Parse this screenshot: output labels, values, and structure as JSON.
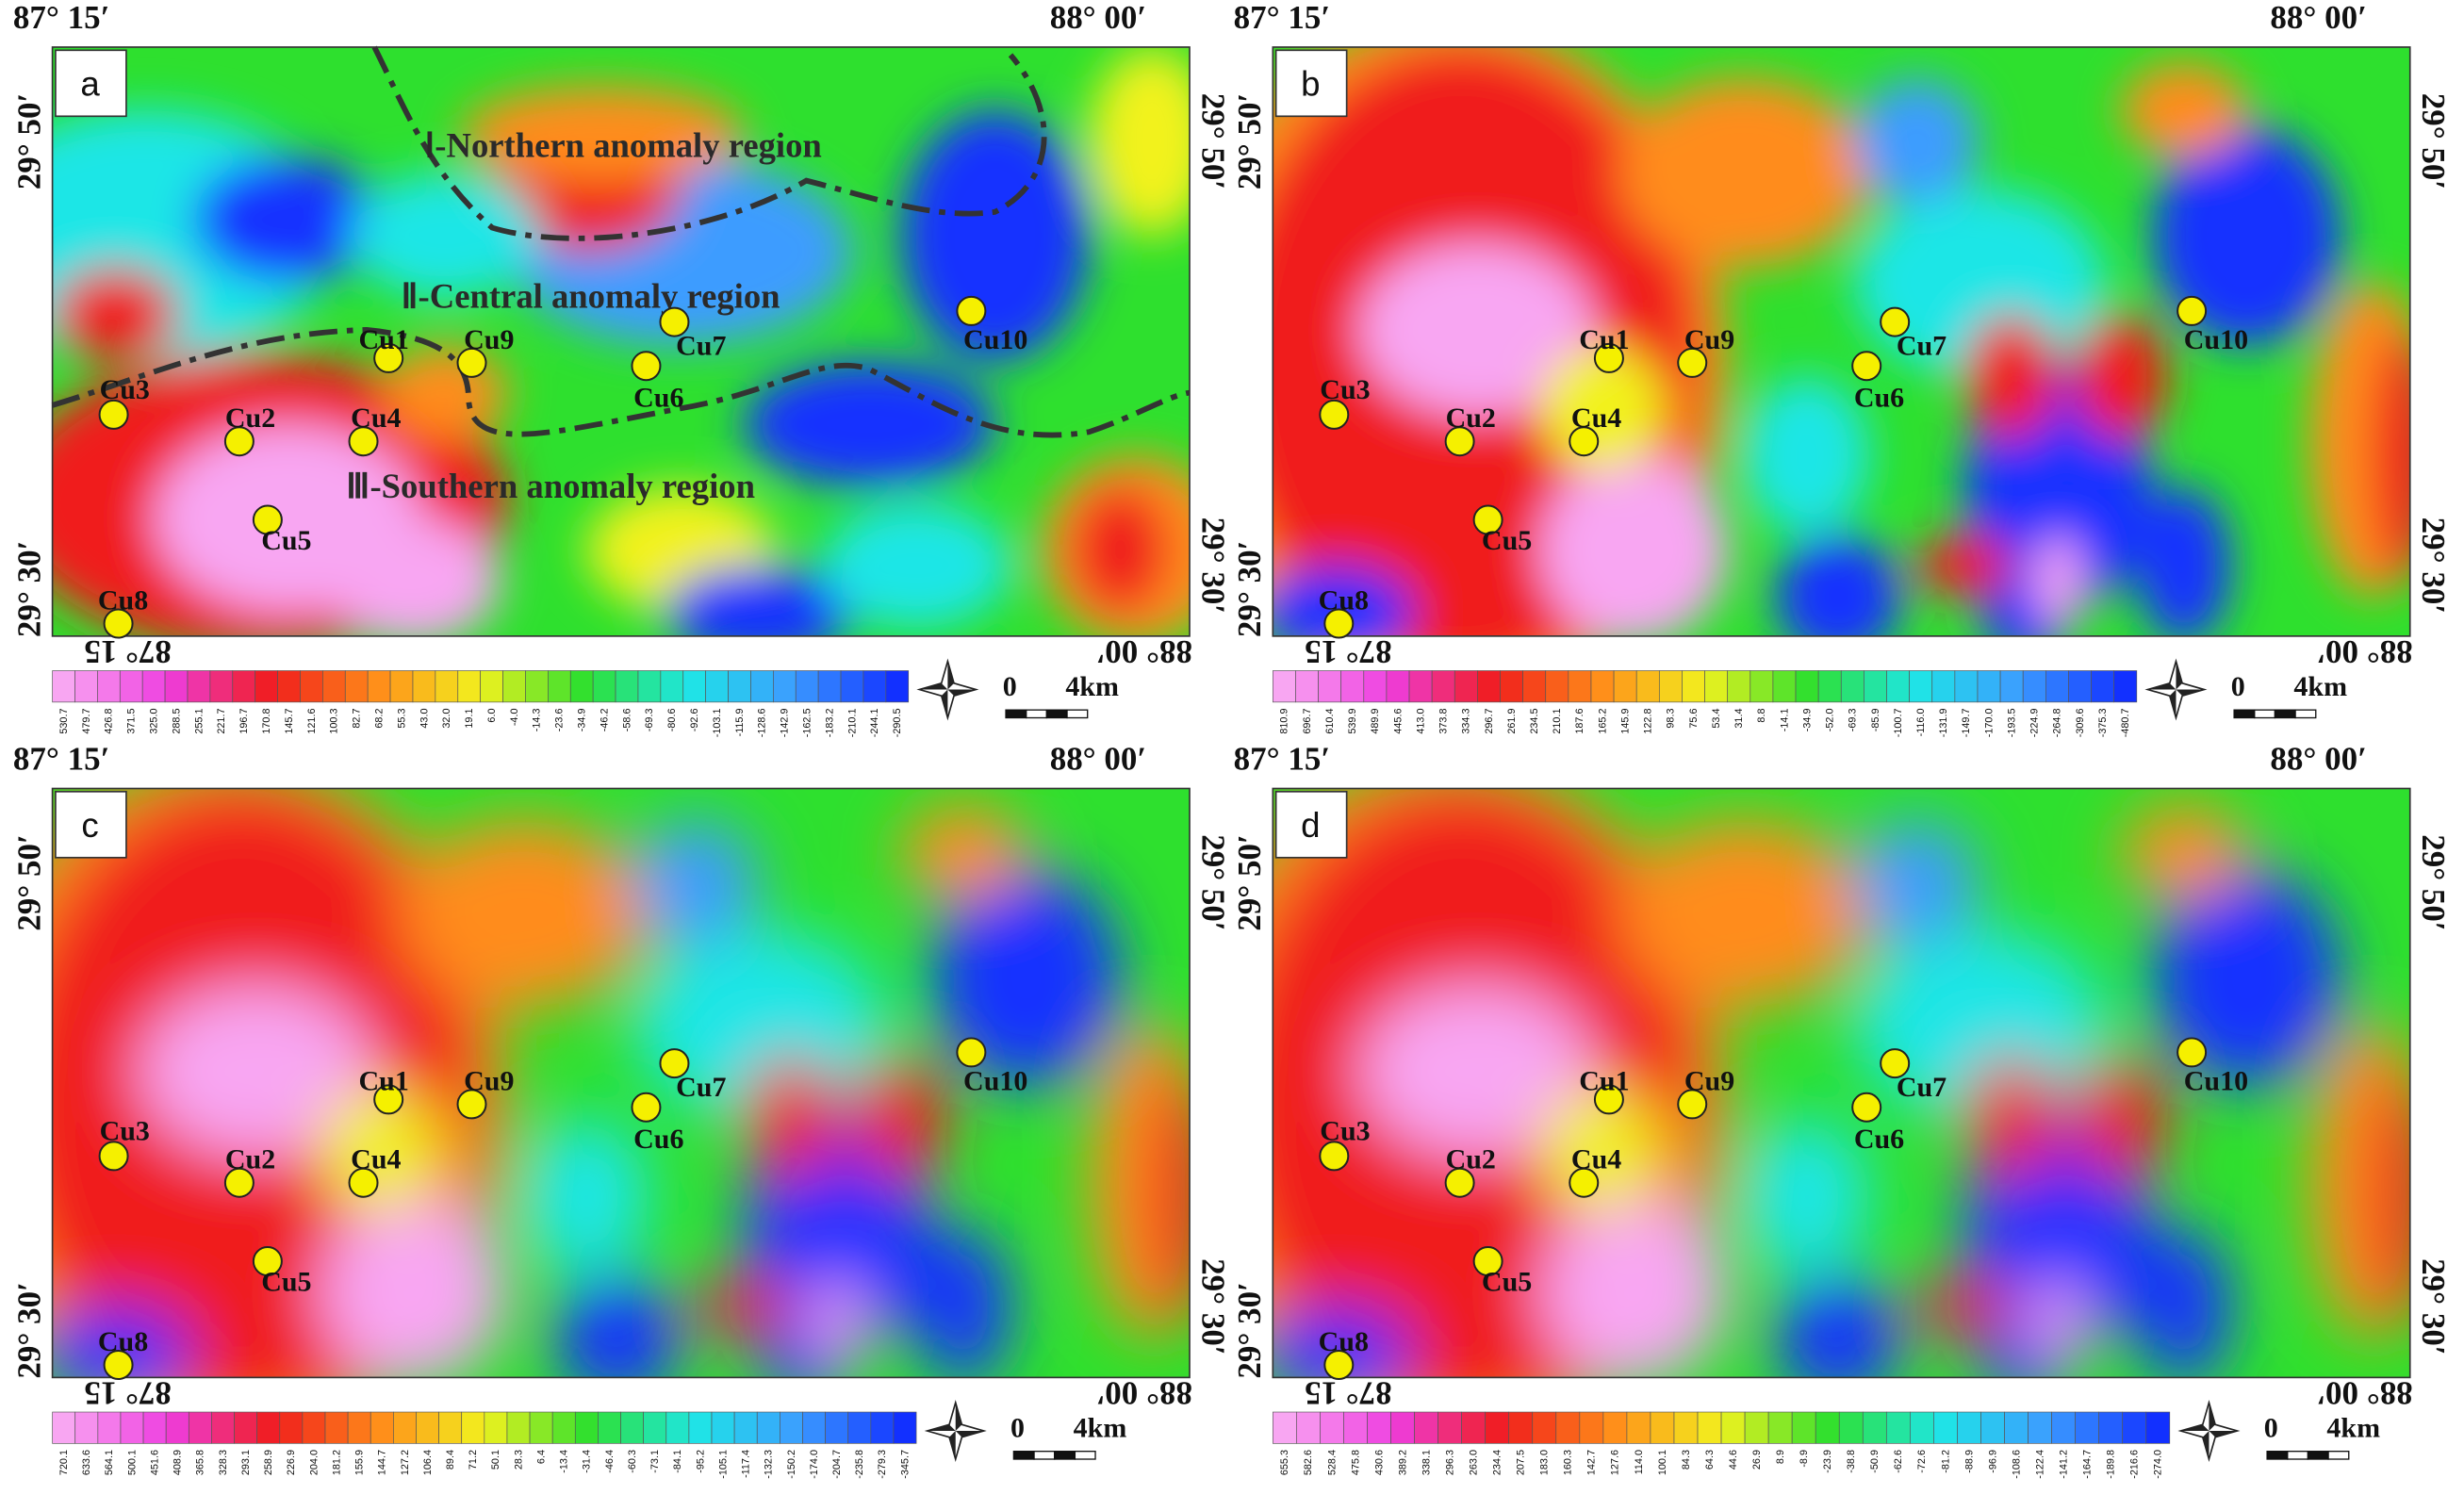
{
  "panels": [
    {
      "label": "a",
      "coords": {
        "top_left": "87° 15′",
        "top_right": "88° 00′",
        "left_top": "29° 50′",
        "left_bottom": "29° 30′",
        "right_top": "29° 50′",
        "right_bottom": "29° 30′",
        "bottom_left": "87° 15",
        "bottom_right": "88° 00′"
      },
      "sites": [
        "Cu3",
        "Cu2",
        "Cu1",
        "Cu9",
        "Cu4",
        "Cu5",
        "Cu8",
        "Cu7",
        "Cu6",
        "Cu10"
      ],
      "regions": [
        "Ⅰ-Northern anomaly region",
        "Ⅱ-Central  anomaly region",
        "Ⅲ-Southern anomaly region"
      ],
      "colorbar": [
        "530.7",
        "479.7",
        "426.8",
        "371.5",
        "325.0",
        "288.5",
        "255.1",
        "221.7",
        "196.7",
        "170.8",
        "145.7",
        "121.6",
        "100.3",
        "82.7",
        "68.2",
        "55.3",
        "43.0",
        "32.0",
        "19.1",
        "6.0",
        "-4.0",
        "-14.3",
        "-23.6",
        "-34.9",
        "-46.2",
        "-58.6",
        "-69.3",
        "-80.6",
        "-92.6",
        "-103.1",
        "-115.9",
        "-128.6",
        "-142.9",
        "-162.5",
        "-183.2",
        "-210.1",
        "-244.1",
        "-290.5"
      ],
      "scale": [
        "0",
        "4km"
      ]
    },
    {
      "label": "b",
      "coords": {
        "top_left": "87° 15′",
        "top_right": "88° 00′",
        "left_top": "29° 50′",
        "left_bottom": "29° 30′",
        "right_top": "29° 50′",
        "right_bottom": "29° 30′",
        "bottom_left": "87° 15",
        "bottom_right": "88° 00′"
      },
      "sites": [
        "Cu3",
        "Cu2",
        "Cu1",
        "Cu9",
        "Cu4",
        "Cu5",
        "Cu8",
        "Cu7",
        "Cu6",
        "Cu10"
      ],
      "colorbar": [
        "810.9",
        "696.7",
        "610.4",
        "539.9",
        "489.9",
        "445.6",
        "413.0",
        "373.8",
        "334.3",
        "296.7",
        "261.9",
        "234.5",
        "210.1",
        "187.6",
        "165.2",
        "145.9",
        "122.8",
        "98.3",
        "75.6",
        "53.4",
        "31.4",
        "8.8",
        "-14.1",
        "-34.9",
        "-52.0",
        "-69.3",
        "-85.9",
        "-100.7",
        "-116.0",
        "-131.9",
        "-149.7",
        "-170.0",
        "-193.5",
        "-224.9",
        "-264.8",
        "-309.6",
        "-375.3",
        "-480.7"
      ],
      "scale": [
        "0",
        "4km"
      ]
    },
    {
      "label": "c",
      "coords": {
        "top_left": "87° 15′",
        "top_right": "88° 00′",
        "left_top": "29° 50′",
        "left_bottom": "29° 30′",
        "right_top": "29° 50′",
        "right_bottom": "29° 30′",
        "bottom_left": "87° 15",
        "bottom_right": "88° 00′"
      },
      "sites": [
        "Cu3",
        "Cu2",
        "Cu1",
        "Cu9",
        "Cu4",
        "Cu5",
        "Cu8",
        "Cu7",
        "Cu6",
        "Cu10"
      ],
      "colorbar": [
        "720.1",
        "633.6",
        "564.1",
        "500.1",
        "451.6",
        "408.9",
        "365.8",
        "328.3",
        "293.1",
        "258.9",
        "226.9",
        "204.0",
        "181.2",
        "155.9",
        "144.7",
        "127.2",
        "106.4",
        "89.4",
        "71.2",
        "50.1",
        "28.3",
        "6.4",
        "-13.4",
        "-31.4",
        "-46.4",
        "-60.3",
        "-73.1",
        "-84.1",
        "-95.2",
        "-105.1",
        "-117.4",
        "-132.3",
        "-150.2",
        "-174.0",
        "-204.7",
        "-235.8",
        "-279.3",
        "-345.7"
      ],
      "scale": [
        "0",
        "4km"
      ]
    },
    {
      "label": "d",
      "coords": {
        "top_left": "87° 15′",
        "top_right": "88° 00′",
        "left_top": "29° 50′",
        "left_bottom": "29° 30′",
        "right_top": "29° 50′",
        "right_bottom": "29° 30′",
        "bottom_left": "87° 15",
        "bottom_right": "88° 00′"
      },
      "sites": [
        "Cu3",
        "Cu2",
        "Cu1",
        "Cu9",
        "Cu4",
        "Cu5",
        "Cu8",
        "Cu7",
        "Cu6",
        "Cu10"
      ],
      "colorbar": [
        "655.3",
        "582.6",
        "528.4",
        "475.8",
        "430.6",
        "389.2",
        "338.1",
        "296.3",
        "263.0",
        "234.4",
        "207.5",
        "183.0",
        "160.3",
        "142.7",
        "127.6",
        "114.0",
        "100.1",
        "84.3",
        "64.3",
        "44.6",
        "26.9",
        "8.9",
        "-8.9",
        "-23.9",
        "-38.8",
        "-50.9",
        "-62.6",
        "-72.6",
        "-81.2",
        "-88.9",
        "-96.9",
        "-108.6",
        "-122.4",
        "-141.2",
        "-164.7",
        "-189.8",
        "-216.6",
        "-274.0"
      ],
      "scale": [
        "0",
        "4km"
      ]
    }
  ]
}
